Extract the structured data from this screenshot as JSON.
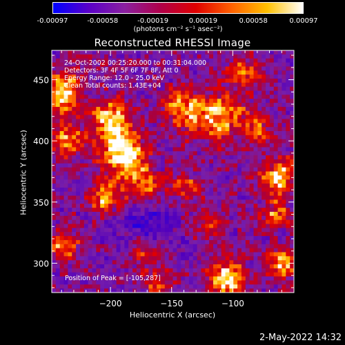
{
  "colorbar": {
    "ticks": [
      "-0.00097",
      "-0.00058",
      "-0.00019",
      "0.00019",
      "0.00058",
      "0.00097"
    ],
    "units": "(photons cm⁻² s⁻¹ asec⁻²)",
    "colors": [
      "#0000ff",
      "#5a00c8",
      "#8a20a0",
      "#b0004a",
      "#e00000",
      "#ff6000",
      "#ffc000",
      "#ffffff"
    ]
  },
  "chart_data": {
    "type": "heatmap",
    "title": "Reconstructed RHESSI Image",
    "xlabel": "Heliocentric X (arcsec)",
    "ylabel": "Heliocentric Y (arcsec)",
    "xlim": [
      -248,
      -50
    ],
    "ylim": [
      276,
      474
    ],
    "xticks": [
      -200,
      -150,
      -100
    ],
    "yticks": [
      300,
      350,
      400,
      450
    ],
    "zrange": [
      -0.00097,
      0.00097
    ],
    "peak": [
      -105,
      287
    ],
    "annotations": [
      "24-Oct-2002 00:25:20.000 to 00:31:04.000",
      "Detectors: 3F 4F 5F 6F 7F 8F, Att 0",
      "Energy Range: 12.0 - 25.0 keV",
      "Clean    Total counts: 1.43E+04"
    ],
    "peak_label": "Position of Peak = [-105,287]"
  },
  "footer": {
    "date": "2-May-2022 14:32"
  }
}
